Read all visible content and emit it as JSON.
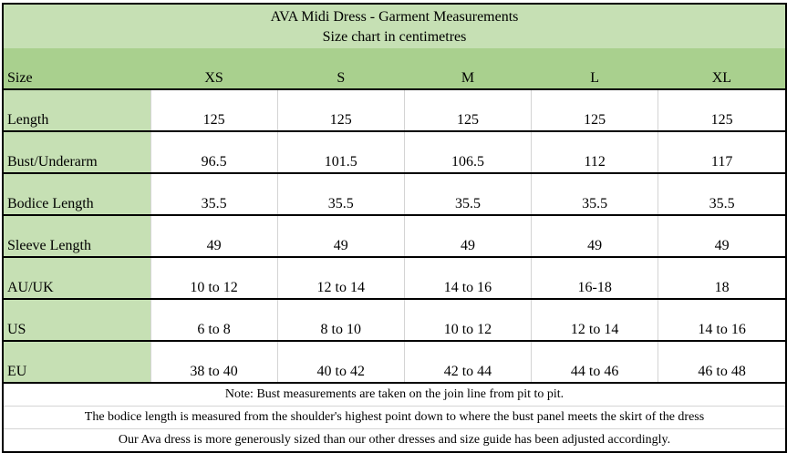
{
  "title": "AVA Midi Dress - Garment Measurements",
  "subtitle": "Size chart in centimetres",
  "header": {
    "label": "Size",
    "sizes": [
      "XS",
      "S",
      "M",
      "L",
      "XL"
    ]
  },
  "rows": [
    {
      "label": "Length",
      "values": [
        "125",
        "125",
        "125",
        "125",
        "125"
      ]
    },
    {
      "label": "Bust/Underarm",
      "values": [
        "96.5",
        "101.5",
        "106.5",
        "112",
        "117"
      ]
    },
    {
      "label": "Bodice Length",
      "values": [
        "35.5",
        "35.5",
        "35.5",
        "35.5",
        "35.5"
      ]
    },
    {
      "label": "Sleeve Length",
      "values": [
        "49",
        "49",
        "49",
        "49",
        "49"
      ]
    },
    {
      "label": "AU/UK",
      "values": [
        "10 to 12",
        "12 to 14",
        "14 to 16",
        "16-18",
        "18"
      ]
    },
    {
      "label": "US",
      "values": [
        "6 to 8",
        "8 to 10",
        "10 to 12",
        "12 to 14",
        "14 to 16"
      ]
    },
    {
      "label": "EU",
      "values": [
        "38 to 40",
        "40 to 42",
        "42 to 44",
        "44 to 46",
        "46 to 48"
      ]
    }
  ],
  "notes": [
    "Note: Bust measurements are taken on the join line from pit to pit.",
    "The bodice length is measured from the shoulder's highest point down to where the bust panel meets the skirt of the dress",
    "Our Ava dress is more generously sized than our other dresses and size guide has been adjusted accordingly."
  ],
  "colors": {
    "title_bg": "#c6e0b4",
    "header_bg": "#a9d08e",
    "label_bg": "#c6e0b4"
  }
}
